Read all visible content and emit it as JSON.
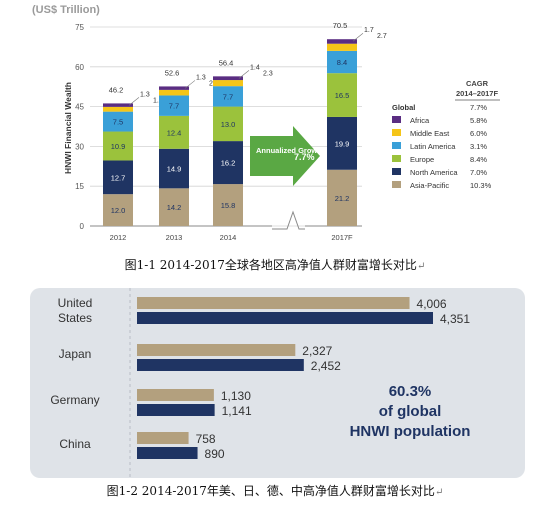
{
  "figures": {
    "fig1_caption": "图1-1 2014-2017全球各地区高净值人群财富增长对比",
    "fig2_caption": "图1-2 2014-2017年美、日、德、中高净值人群财富增长对比",
    "return_mark": "↵"
  },
  "colors": {
    "Africa": "#5a2d82",
    "Middle East": "#f5c518",
    "Latin America": "#3aa0d8",
    "Europe": "#9bc23c",
    "North America": "#1f3463",
    "Asia-Pacific": "#b3a07e",
    "arrow": "#5aa844",
    "panel_bg": "#dfe3e8",
    "bar_2014": "#b3a07e",
    "bar_2017": "#1f3463"
  },
  "chart_data": [
    {
      "type": "bar",
      "stacked": true,
      "unit_label": "(US$ Trillion)",
      "ylabel": "HNWI Financial Wealth",
      "ylim": [
        0,
        75
      ],
      "yticks": [
        "0",
        "15",
        "30",
        "45",
        "60",
        "75"
      ],
      "categories": [
        "2012",
        "2013",
        "2014",
        "2017F"
      ],
      "totals": [
        "46.2",
        "52.6",
        "56.4",
        "70.5"
      ],
      "series": [
        {
          "name": "Asia-Pacific",
          "values": [
            12.0,
            14.2,
            15.8,
            21.2
          ],
          "labels": [
            "12.0",
            "14.2",
            "15.8",
            "21.2"
          ]
        },
        {
          "name": "North America",
          "values": [
            12.7,
            14.9,
            16.2,
            19.9
          ],
          "labels": [
            "12.7",
            "14.9",
            "16.2",
            "19.9"
          ]
        },
        {
          "name": "Europe",
          "values": [
            10.9,
            12.4,
            13.0,
            16.5
          ],
          "labels": [
            "10.9",
            "12.4",
            "13.0",
            "16.5"
          ]
        },
        {
          "name": "Latin America",
          "values": [
            7.5,
            7.7,
            7.7,
            8.4
          ],
          "labels": [
            "7.5",
            "7.7",
            "7.7",
            "8.4"
          ]
        },
        {
          "name": "Middle East",
          "values": [
            1.8,
            2.1,
            2.3,
            2.7
          ],
          "labels": [
            "1.8",
            "2.1",
            "2.3",
            "2.7"
          ]
        },
        {
          "name": "Africa",
          "values": [
            1.3,
            1.3,
            1.4,
            1.7
          ],
          "labels": [
            "1.3",
            "1.3",
            "1.4",
            "1.7"
          ]
        }
      ],
      "annotation": {
        "text": "Annualized Growth",
        "value": "7.7%"
      },
      "cagr_table": {
        "header": "CAGR 2014–2017F",
        "rows": [
          {
            "name": "Global",
            "value": "7.7%"
          },
          {
            "name": "Africa",
            "value": "5.8%"
          },
          {
            "name": "Middle East",
            "value": "6.0%"
          },
          {
            "name": "Latin America",
            "value": "3.1%"
          },
          {
            "name": "Europe",
            "value": "8.4%"
          },
          {
            "name": "North America",
            "value": "7.0%"
          },
          {
            "name": "Asia-Pacific",
            "value": "10.3%"
          }
        ]
      }
    },
    {
      "type": "bar",
      "orientation": "horizontal",
      "categories": [
        "United States",
        "Japan",
        "Germany",
        "China"
      ],
      "series": [
        {
          "values": [
            4006,
            2327,
            1130,
            758
          ],
          "labels": [
            "4,006",
            "2,327",
            "1,130",
            "758"
          ]
        },
        {
          "values": [
            4351,
            2452,
            1141,
            890
          ],
          "labels": [
            "4,351",
            "2,452",
            "1,141",
            "890"
          ]
        }
      ],
      "xlim": [
        0,
        4351
      ],
      "annotation": "60.3% of global HNWI population"
    }
  ]
}
